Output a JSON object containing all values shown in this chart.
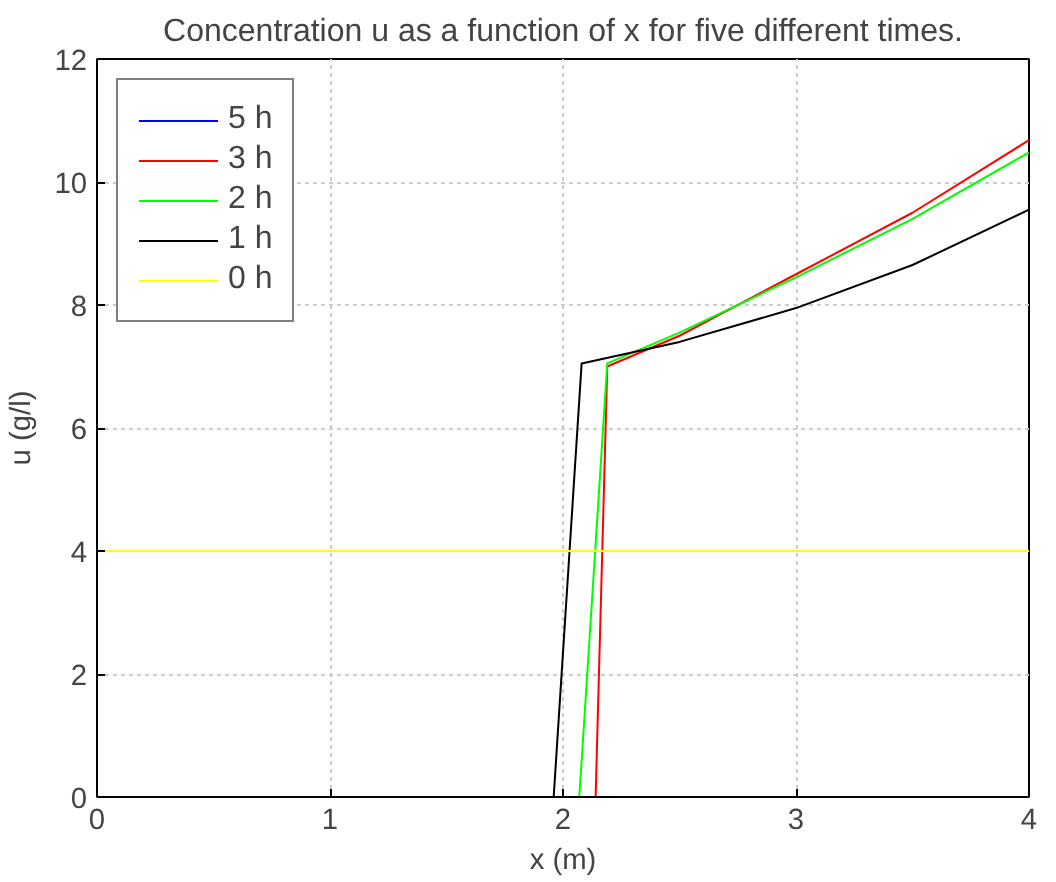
{
  "chart_data": {
    "type": "line",
    "title": "Concentration u as a function of x for five different times.",
    "xlabel": "x (m)",
    "ylabel": "u (g/l)",
    "xlim": [
      0,
      4
    ],
    "ylim": [
      0,
      12
    ],
    "xticks": [
      0,
      1,
      2,
      3,
      4
    ],
    "yticks": [
      0,
      2,
      4,
      6,
      8,
      10,
      12
    ],
    "grid": true,
    "legend": "top left",
    "series": [
      {
        "name": "5 h",
        "color": "#0000ff",
        "type": "line"
      },
      {
        "name": "3 h",
        "color": "#ff0000",
        "x": [
          0,
          2.14,
          2.19,
          2.5,
          3,
          3.5,
          4
        ],
        "values": [
          0,
          0,
          7.0,
          7.5,
          8.5,
          9.5,
          10.68
        ]
      },
      {
        "name": "2 h",
        "color": "#00ff00",
        "x": [
          0,
          2.07,
          2.19,
          2.5,
          3,
          3.5,
          4
        ],
        "values": [
          0,
          0,
          7.05,
          7.55,
          8.45,
          9.4,
          10.48
        ]
      },
      {
        "name": "1 h",
        "color": "#000000",
        "x": [
          0,
          1.96,
          2.08,
          2.5,
          3,
          3.5,
          4
        ],
        "values": [
          0,
          0,
          7.05,
          7.4,
          7.95,
          8.65,
          9.55
        ]
      },
      {
        "name": "0 h",
        "color": "#ffff00",
        "x": [
          0,
          4
        ],
        "values": [
          4,
          4
        ]
      }
    ]
  }
}
